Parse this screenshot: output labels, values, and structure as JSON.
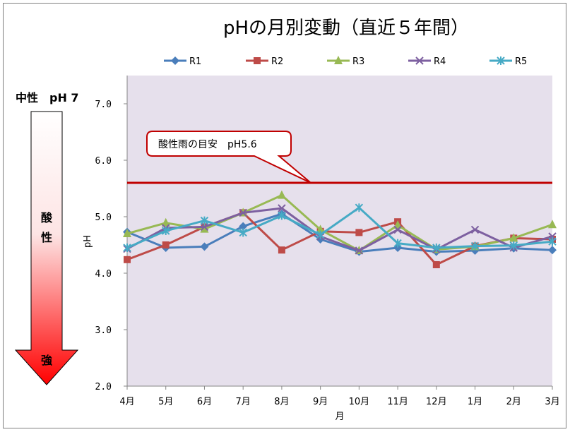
{
  "chart_data": {
    "type": "line",
    "title": "pHの月別変動（直近５年間）",
    "xlabel": "月",
    "ylabel": "pH",
    "ylim": [
      2.0,
      7.5
    ],
    "yticks": [
      "2.0",
      "3.0",
      "4.0",
      "5.0",
      "6.0",
      "7.0"
    ],
    "categories": [
      "4月",
      "5月",
      "6月",
      "7月",
      "8月",
      "9月",
      "10月",
      "11月",
      "12月",
      "1月",
      "2月",
      "3月"
    ],
    "legend_position": "top",
    "grid": false,
    "series": [
      {
        "name": "R1",
        "color": "#4a7ebb",
        "marker": "diamond",
        "values": [
          4.73,
          4.45,
          4.47,
          4.83,
          5.05,
          4.6,
          4.38,
          4.45,
          4.38,
          4.4,
          4.44,
          4.41
        ]
      },
      {
        "name": "R2",
        "color": "#be4b48",
        "marker": "square",
        "values": [
          4.24,
          4.5,
          4.82,
          5.07,
          4.41,
          4.74,
          4.72,
          4.91,
          4.15,
          4.48,
          4.62,
          4.6
        ]
      },
      {
        "name": "R3",
        "color": "#98b954",
        "marker": "triangle",
        "values": [
          4.7,
          4.89,
          4.78,
          5.07,
          5.38,
          4.77,
          4.4,
          4.85,
          4.42,
          4.47,
          4.62,
          4.86
        ]
      },
      {
        "name": "R4",
        "color": "#7d60a0",
        "marker": "x",
        "values": [
          4.43,
          4.8,
          4.82,
          5.07,
          5.15,
          4.65,
          4.4,
          4.77,
          4.42,
          4.77,
          4.45,
          4.65
        ]
      },
      {
        "name": "R5",
        "color": "#46aac5",
        "marker": "asterisk",
        "values": [
          4.45,
          4.75,
          4.93,
          4.72,
          5.02,
          4.68,
          5.16,
          4.53,
          4.45,
          4.48,
          4.49,
          4.56
        ]
      }
    ],
    "reference_line": {
      "value": 5.6,
      "color": "#c00000"
    },
    "annotation": "酸性雨の目安　pH5.6",
    "plot_background": "#e6e0ec",
    "side_scale": {
      "top_label": "中性　pH 7",
      "middle_label_1": "酸",
      "middle_label_2": "性",
      "bottom_label": "強",
      "gradient_top": "#ffffff",
      "gradient_bottom": "#ff0000"
    }
  }
}
